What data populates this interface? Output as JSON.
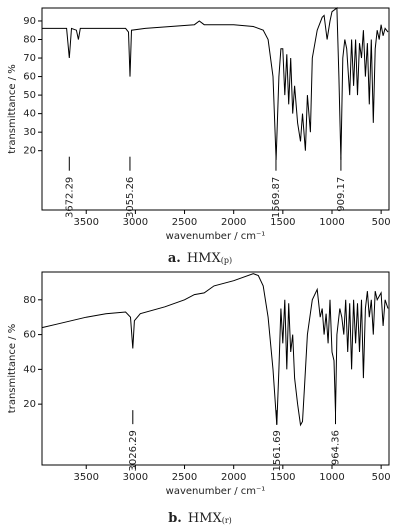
{
  "chart_data": [
    {
      "type": "line",
      "xlabel": "wavenumber / cm⁻¹",
      "ylabel": "transmittance / %",
      "color": "#000000",
      "caption": {
        "letter": "a.",
        "text": "HMX",
        "subscript": "(p)"
      },
      "xlim": [
        3950,
        420
      ],
      "ylim": [
        -12,
        97
      ],
      "xticks": [
        3500,
        3000,
        2500,
        2000,
        1500,
        1000,
        500
      ],
      "yticks": [
        20,
        30,
        40,
        50,
        60,
        70,
        80,
        90
      ],
      "peaks": [
        3672.29,
        3055.26,
        1569.87,
        909.17
      ],
      "x": [
        3950,
        3800,
        3700,
        3672,
        3650,
        3600,
        3580,
        3560,
        3100,
        3070,
        3055,
        3040,
        2900,
        2400,
        2350,
        2300,
        2000,
        1800,
        1700,
        1650,
        1600,
        1569,
        1540,
        1520,
        1500,
        1480,
        1460,
        1440,
        1420,
        1400,
        1380,
        1350,
        1320,
        1300,
        1270,
        1250,
        1220,
        1200,
        1150,
        1100,
        1080,
        1050,
        1020,
        1000,
        950,
        930,
        909,
        890,
        870,
        850,
        820,
        800,
        780,
        760,
        740,
        720,
        700,
        680,
        660,
        640,
        620,
        600,
        580,
        560,
        540,
        520,
        500,
        480,
        460,
        430
      ],
      "values": [
        86,
        86,
        86,
        70,
        86,
        85,
        80,
        86,
        86,
        84,
        60,
        85,
        86,
        88,
        90,
        88,
        88,
        87,
        85,
        80,
        60,
        15,
        60,
        75,
        75,
        50,
        72,
        45,
        70,
        40,
        55,
        35,
        25,
        40,
        20,
        50,
        30,
        70,
        85,
        92,
        93,
        80,
        90,
        95,
        97,
        60,
        15,
        70,
        80,
        75,
        50,
        80,
        55,
        80,
        50,
        78,
        70,
        85,
        60,
        78,
        45,
        80,
        35,
        75,
        85,
        80,
        88,
        82,
        86,
        84
      ]
    },
    {
      "type": "line",
      "xlabel": "wavenumber / cm⁻¹",
      "ylabel": "transmittance / %",
      "color": "#000000",
      "caption": {
        "letter": "b.",
        "text": "HMX",
        "subscript": "(r)"
      },
      "xlim": [
        3950,
        420
      ],
      "ylim": [
        -15,
        96
      ],
      "xticks": [
        3500,
        3000,
        2500,
        2000,
        1500,
        1000,
        500
      ],
      "yticks": [
        20,
        40,
        60,
        80
      ],
      "peaks": [
        3026.29,
        1561.69,
        964.36
      ],
      "x": [
        3950,
        3800,
        3500,
        3300,
        3100,
        3050,
        3026,
        3010,
        2950,
        2700,
        2500,
        2400,
        2300,
        2200,
        2000,
        1800,
        1750,
        1700,
        1650,
        1600,
        1561,
        1540,
        1520,
        1500,
        1480,
        1460,
        1440,
        1420,
        1400,
        1380,
        1350,
        1320,
        1300,
        1280,
        1250,
        1200,
        1150,
        1120,
        1100,
        1080,
        1060,
        1040,
        1020,
        1000,
        980,
        964,
        950,
        920,
        900,
        880,
        860,
        840,
        820,
        800,
        780,
        760,
        740,
        720,
        700,
        680,
        660,
        640,
        620,
        600,
        580,
        560,
        540,
        500,
        480,
        460,
        430
      ],
      "values": [
        64,
        66,
        70,
        72,
        73,
        70,
        52,
        68,
        72,
        76,
        80,
        83,
        84,
        88,
        91,
        95,
        94,
        88,
        70,
        40,
        8,
        40,
        75,
        55,
        80,
        40,
        78,
        50,
        60,
        35,
        20,
        8,
        10,
        30,
        60,
        80,
        86,
        70,
        75,
        60,
        72,
        55,
        80,
        50,
        45,
        15,
        60,
        75,
        70,
        60,
        80,
        50,
        78,
        40,
        80,
        55,
        78,
        50,
        80,
        35,
        75,
        85,
        70,
        80,
        60,
        85,
        80,
        84,
        65,
        80,
        75
      ]
    }
  ]
}
